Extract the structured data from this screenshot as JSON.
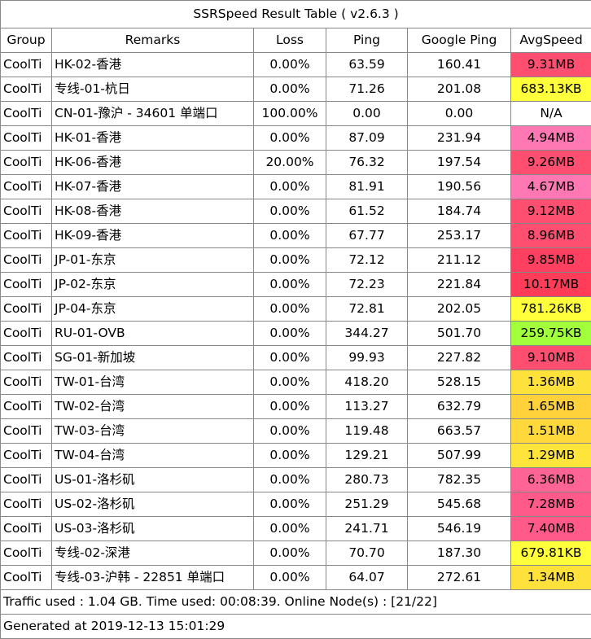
{
  "title": "SSRSpeed Result Table ( v2.6.3 )",
  "headers": [
    "Group",
    "Remarks",
    "Loss",
    "Ping",
    "Google Ping",
    "AvgSpeed"
  ],
  "rows": [
    {
      "group": "CoolTi",
      "remarks": "HK-02-香港",
      "loss": "0.00%",
      "ping": "63.59",
      "gping": "160.41",
      "speed": "9.31MB",
      "color": "#ff4f70"
    },
    {
      "group": "CoolTi",
      "remarks": "专线-01-杭日",
      "loss": "0.00%",
      "ping": "71.26",
      "gping": "201.08",
      "speed": "683.13KB",
      "color": "#ffff3c"
    },
    {
      "group": "CoolTi",
      "remarks": "CN-01-豫沪 - 34601 单端口",
      "loss": "100.00%",
      "ping": "0.00",
      "gping": "0.00",
      "speed": "N/A",
      "color": "#ffffff"
    },
    {
      "group": "CoolTi",
      "remarks": "HK-01-香港",
      "loss": "0.00%",
      "ping": "87.09",
      "gping": "231.94",
      "speed": "4.94MB",
      "color": "#ff78b4"
    },
    {
      "group": "CoolTi",
      "remarks": "HK-06-香港",
      "loss": "20.00%",
      "ping": "76.32",
      "gping": "197.54",
      "speed": "9.26MB",
      "color": "#ff4f70"
    },
    {
      "group": "CoolTi",
      "remarks": "HK-07-香港",
      "loss": "0.00%",
      "ping": "81.91",
      "gping": "190.56",
      "speed": "4.67MB",
      "color": "#ff78b4"
    },
    {
      "group": "CoolTi",
      "remarks": "HK-08-香港",
      "loss": "0.00%",
      "ping": "61.52",
      "gping": "184.74",
      "speed": "9.12MB",
      "color": "#ff4f70"
    },
    {
      "group": "CoolTi",
      "remarks": "HK-09-香港",
      "loss": "0.00%",
      "ping": "67.77",
      "gping": "253.17",
      "speed": "8.96MB",
      "color": "#ff4f70"
    },
    {
      "group": "CoolTi",
      "remarks": "JP-01-东京",
      "loss": "0.00%",
      "ping": "72.12",
      "gping": "211.12",
      "speed": "9.85MB",
      "color": "#ff4060"
    },
    {
      "group": "CoolTi",
      "remarks": "JP-02-东京",
      "loss": "0.00%",
      "ping": "72.23",
      "gping": "221.84",
      "speed": "10.17MB",
      "color": "#ff3d58"
    },
    {
      "group": "CoolTi",
      "remarks": "JP-04-东京",
      "loss": "0.00%",
      "ping": "72.81",
      "gping": "202.05",
      "speed": "781.26KB",
      "color": "#ffff3c"
    },
    {
      "group": "CoolTi",
      "remarks": "RU-01-OVB",
      "loss": "0.00%",
      "ping": "344.27",
      "gping": "501.70",
      "speed": "259.75KB",
      "color": "#a2ff3c"
    },
    {
      "group": "CoolTi",
      "remarks": "SG-01-新加坡",
      "loss": "0.00%",
      "ping": "99.93",
      "gping": "227.82",
      "speed": "9.10MB",
      "color": "#ff4f70"
    },
    {
      "group": "CoolTi",
      "remarks": "TW-01-台湾",
      "loss": "0.00%",
      "ping": "418.20",
      "gping": "528.15",
      "speed": "1.36MB",
      "color": "#ffe13c"
    },
    {
      "group": "CoolTi",
      "remarks": "TW-02-台湾",
      "loss": "0.00%",
      "ping": "113.27",
      "gping": "632.79",
      "speed": "1.65MB",
      "color": "#ffd23c"
    },
    {
      "group": "CoolTi",
      "remarks": "TW-03-台湾",
      "loss": "0.00%",
      "ping": "119.48",
      "gping": "663.57",
      "speed": "1.51MB",
      "color": "#ffd83c"
    },
    {
      "group": "CoolTi",
      "remarks": "TW-04-台湾",
      "loss": "0.00%",
      "ping": "129.21",
      "gping": "507.99",
      "speed": "1.29MB",
      "color": "#ffe43c"
    },
    {
      "group": "CoolTi",
      "remarks": "US-01-洛杉矶",
      "loss": "0.00%",
      "ping": "280.73",
      "gping": "782.35",
      "speed": "6.36MB",
      "color": "#ff6496"
    },
    {
      "group": "CoolTi",
      "remarks": "US-02-洛杉矶",
      "loss": "0.00%",
      "ping": "251.29",
      "gping": "545.68",
      "speed": "7.28MB",
      "color": "#ff5a8a"
    },
    {
      "group": "CoolTi",
      "remarks": "US-03-洛杉矶",
      "loss": "0.00%",
      "ping": "241.71",
      "gping": "546.19",
      "speed": "7.40MB",
      "color": "#ff5a8a"
    },
    {
      "group": "CoolTi",
      "remarks": "专线-02-深港",
      "loss": "0.00%",
      "ping": "70.70",
      "gping": "187.30",
      "speed": "679.81KB",
      "color": "#ffff3c"
    },
    {
      "group": "CoolTi",
      "remarks": "专线-03-沪韩 - 22851 单端口",
      "loss": "0.00%",
      "ping": "64.07",
      "gping": "272.61",
      "speed": "1.34MB",
      "color": "#ffe13c"
    }
  ],
  "footer": {
    "traffic": "Traffic used : 1.04 GB. Time used: 00:08:39. Online Node(s) : [21/22]",
    "generated": "Generated at 2019-12-13 15:01:29"
  }
}
